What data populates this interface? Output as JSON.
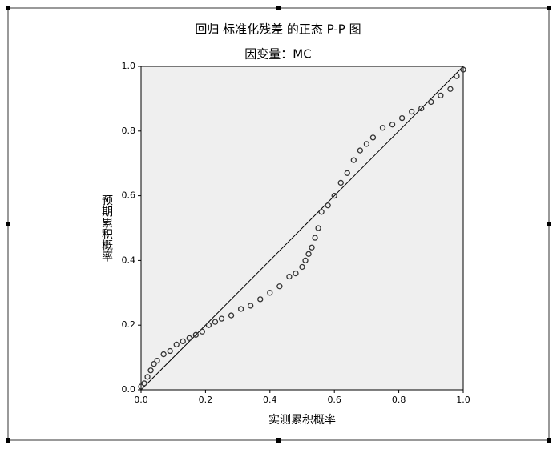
{
  "chart_data": {
    "type": "scatter",
    "title": "回归 标准化残差 的正态 P-P 图",
    "subtitle": "因变量：MC",
    "x_label": "实测累积概率",
    "y_label": "预期累积概率",
    "color": "#333333",
    "x": [
      0,
      0.01,
      0.02,
      0.03,
      0.04,
      0.05,
      0.07,
      0.09,
      0.11,
      0.13,
      0.15,
      0.17,
      0.19,
      0.21,
      0.23,
      0.25,
      0.28,
      0.31,
      0.34,
      0.37,
      0.4,
      0.43,
      0.46,
      0.48,
      0.5,
      0.51,
      0.52,
      0.53,
      0.54,
      0.55,
      0.56,
      0.58,
      0.6,
      0.62,
      0.64,
      0.66,
      0.68,
      0.7,
      0.72,
      0.75,
      0.78,
      0.81,
      0.84,
      0.87,
      0.9,
      0.93,
      0.96,
      0.98,
      1.0
    ],
    "values": [
      0.01,
      0.02,
      0.04,
      0.06,
      0.08,
      0.09,
      0.11,
      0.12,
      0.14,
      0.15,
      0.16,
      0.17,
      0.18,
      0.2,
      0.21,
      0.22,
      0.23,
      0.25,
      0.26,
      0.28,
      0.3,
      0.32,
      0.35,
      0.36,
      0.38,
      0.4,
      0.42,
      0.44,
      0.47,
      0.5,
      0.55,
      0.57,
      0.6,
      0.64,
      0.67,
      0.71,
      0.74,
      0.76,
      0.78,
      0.81,
      0.82,
      0.84,
      0.86,
      0.87,
      0.89,
      0.91,
      0.93,
      0.97,
      0.99
    ],
    "xlim": [
      0,
      1
    ],
    "ylim": [
      0,
      1
    ],
    "xticks": [
      {
        "value": 0,
        "label": "0.0"
      },
      0.2,
      0.4,
      0.6,
      0.8,
      {
        "value": 1,
        "label": "1.0"
      }
    ],
    "yticks": [
      {
        "value": 0,
        "label": "0.0"
      },
      0.2,
      0.4,
      0.6,
      0.8,
      {
        "value": 1,
        "label": "1.0"
      }
    ]
  }
}
